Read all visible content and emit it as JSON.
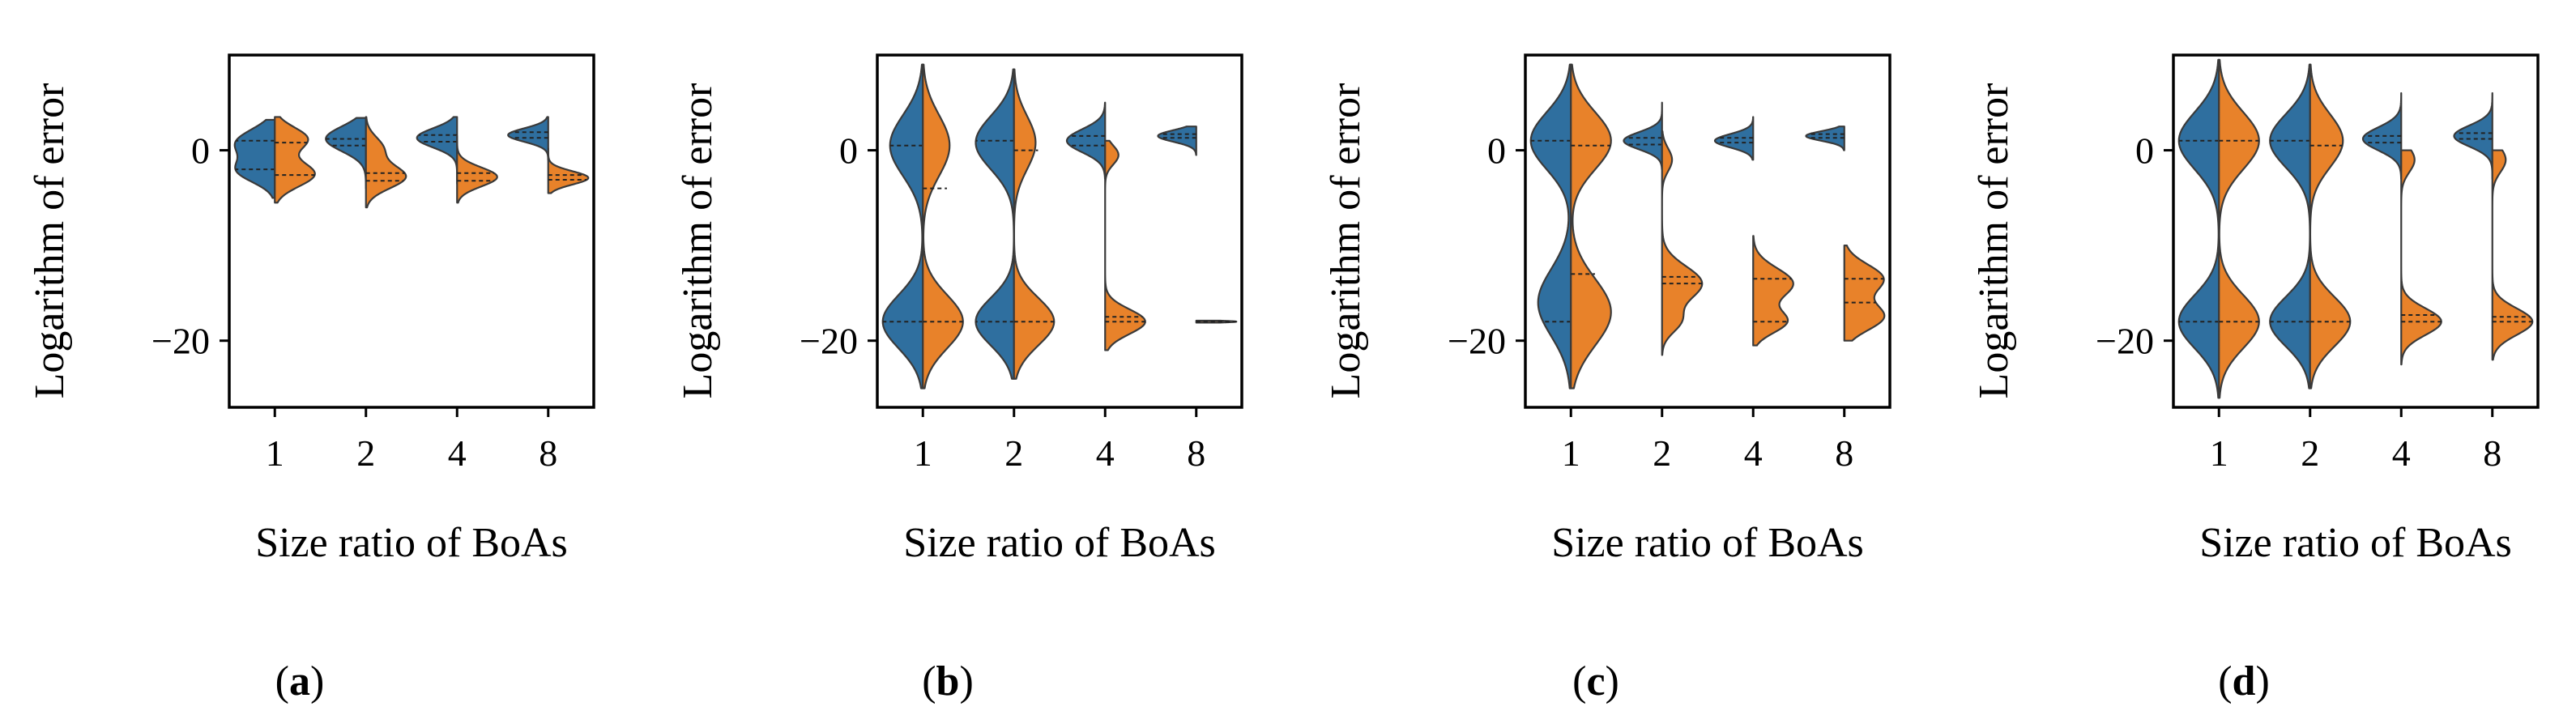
{
  "colors": {
    "left": "#2f6f9f",
    "right": "#e8822a",
    "edge": "#3a3a3a",
    "quart": "#222222"
  },
  "chart_data": [
    {
      "type": "violin",
      "panel_label": "a",
      "xlabel": "Size ratio of BoAs",
      "ylabel": "Logarithm of error",
      "categories": [
        "1",
        "2",
        "4",
        "8"
      ],
      "ylim": [
        -27,
        10
      ],
      "yticks": [
        0,
        -20
      ],
      "ytick_labels": [
        "0",
        "−20"
      ],
      "violins": [
        {
          "left": {
            "range": [
              -5,
              3.2
            ],
            "components": [
              [
                0.8,
                1.4,
                0.55
              ],
              [
                -2.2,
                1.2,
                0.5
              ]
            ],
            "width": 0.44,
            "quartiles": [
              -2,
              1
            ]
          },
          "right": {
            "range": [
              -5.5,
              3.5
            ],
            "components": [
              [
                1.2,
                1.2,
                0.45
              ],
              [
                -2.5,
                1.3,
                0.55
              ]
            ],
            "width": 0.44,
            "quartiles": [
              -2.6,
              0.8
            ]
          }
        },
        {
          "left": {
            "range": [
              -4,
              3.4
            ],
            "components": [
              [
                1.2,
                1.3,
                1
              ]
            ],
            "width": 0.44,
            "quartiles": [
              0.5,
              1.2
            ]
          },
          "right": {
            "range": [
              -6,
              3.5
            ],
            "components": [
              [
                -2.8,
                1.2,
                0.7
              ],
              [
                0.2,
                1.2,
                0.3
              ]
            ],
            "width": 0.44,
            "quartiles": [
              -3.2,
              -2.4
            ]
          }
        },
        {
          "left": {
            "range": [
              -3.5,
              3.5
            ],
            "components": [
              [
                1.3,
                1.0,
                1
              ]
            ],
            "width": 0.44,
            "quartiles": [
              0.9,
              1.6
            ]
          },
          "right": {
            "range": [
              -5.5,
              1.5
            ],
            "components": [
              [
                -2.8,
                1.0,
                1
              ]
            ],
            "width": 0.44,
            "quartiles": [
              -3.2,
              -2.4
            ]
          }
        },
        {
          "left": {
            "range": [
              -1,
              3.5
            ],
            "components": [
              [
                1.6,
                0.7,
                1
              ]
            ],
            "width": 0.44,
            "quartiles": [
              1.3,
              1.9
            ]
          },
          "right": {
            "range": [
              -4.5,
              0.2
            ],
            "components": [
              [
                -2.9,
                0.7,
                1
              ]
            ],
            "width": 0.44,
            "quartiles": [
              -3.1,
              -2.6
            ]
          }
        }
      ]
    },
    {
      "type": "violin",
      "panel_label": "b",
      "xlabel": "Size ratio of BoAs",
      "ylabel": "Logarithm of error",
      "categories": [
        "1",
        "2",
        "4",
        "8"
      ],
      "ylim": [
        -27,
        10
      ],
      "yticks": [
        0,
        -20
      ],
      "ytick_labels": [
        "0",
        "−20"
      ],
      "violins": [
        {
          "left": {
            "range": [
              -25,
              9
            ],
            "components": [
              [
                0.5,
                3.2,
                0.45
              ],
              [
                -18,
                2.8,
                0.55
              ]
            ],
            "width": 0.44,
            "quartiles": [
              -18,
              0.5
            ]
          },
          "right": {
            "range": [
              -25,
              9
            ],
            "components": [
              [
                0.5,
                3.2,
                0.4
              ],
              [
                -18,
                2.8,
                0.6
              ]
            ],
            "width": 0.44,
            "quartiles": [
              -18,
              -4
            ]
          }
        },
        {
          "left": {
            "range": [
              -24,
              8.5
            ],
            "components": [
              [
                0.8,
                2.8,
                0.5
              ],
              [
                -18,
                2.5,
                0.5
              ]
            ],
            "width": 0.42,
            "quartiles": [
              -18,
              1
            ]
          },
          "right": {
            "range": [
              -24,
              8.5
            ],
            "components": [
              [
                0.8,
                2.8,
                0.35
              ],
              [
                -18,
                2.5,
                0.65
              ]
            ],
            "width": 0.44,
            "quartiles": [
              -18,
              0
            ]
          }
        },
        {
          "left": {
            "range": [
              -3,
              5
            ],
            "components": [
              [
                1.0,
                1.2,
                1
              ]
            ],
            "width": 0.42,
            "quartiles": [
              0.5,
              1.5
            ]
          },
          "right": {
            "range": [
              -21,
              1
            ],
            "components": [
              [
                -18,
                1.3,
                0.75
              ],
              [
                -0.5,
                1.0,
                0.25
              ]
            ],
            "width": 0.44,
            "quartiles": [
              -18,
              -17.5
            ]
          }
        },
        {
          "left": {
            "range": [
              -0.5,
              2.5
            ],
            "components": [
              [
                1.5,
                0.6,
                1
              ]
            ],
            "width": 0.42,
            "quartiles": [
              1.3,
              1.7
            ]
          },
          "right": {
            "range": [
              -18.1,
              -17.9
            ],
            "components": [
              [
                -18,
                0.1,
                1
              ]
            ],
            "width": 0.44,
            "quartiles": [
              -18,
              -18
            ]
          }
        }
      ]
    },
    {
      "type": "violin",
      "panel_label": "c",
      "xlabel": "Size ratio of BoAs",
      "ylabel": "Logarithm of error",
      "categories": [
        "1",
        "2",
        "4",
        "8"
      ],
      "ylim": [
        -27,
        10
      ],
      "yticks": [
        0,
        -20
      ],
      "ytick_labels": [
        "0",
        "−20"
      ],
      "violins": [
        {
          "left": {
            "range": [
              -25,
              9
            ],
            "components": [
              [
                1.0,
                3.0,
                0.55
              ],
              [
                -16,
                3.5,
                0.45
              ]
            ],
            "width": 0.44,
            "quartiles": [
              -18,
              1
            ]
          },
          "right": {
            "range": [
              -25,
              9
            ],
            "components": [
              [
                1.0,
                3.0,
                0.5
              ],
              [
                -17,
                3.5,
                0.5
              ]
            ],
            "width": 0.44,
            "quartiles": [
              -13,
              0.5
            ]
          }
        },
        {
          "left": {
            "range": [
              -2,
              5
            ],
            "components": [
              [
                1.0,
                0.9,
                1
              ]
            ],
            "width": 0.42,
            "quartiles": [
              0.6,
              1.3
            ]
          },
          "right": {
            "range": [
              -21.5,
              2
            ],
            "components": [
              [
                -14,
                1.8,
                0.6
              ],
              [
                -18,
                1.2,
                0.25
              ],
              [
                -1,
                1.2,
                0.15
              ]
            ],
            "width": 0.44,
            "quartiles": [
              -14,
              -13.3
            ]
          }
        },
        {
          "left": {
            "range": [
              -1,
              3.5
            ],
            "components": [
              [
                1.0,
                0.7,
                1
              ]
            ],
            "width": 0.42,
            "quartiles": [
              0.8,
              1.3
            ]
          },
          "right": {
            "range": [
              -20.5,
              -9
            ],
            "components": [
              [
                -14,
                1.6,
                0.55
              ],
              [
                -18,
                1.2,
                0.45
              ]
            ],
            "width": 0.44,
            "quartiles": [
              -18,
              -13.5
            ]
          }
        },
        {
          "left": {
            "range": [
              0,
              2.5
            ],
            "components": [
              [
                1.5,
                0.5,
                1
              ]
            ],
            "width": 0.42,
            "quartiles": [
              1.3,
              1.7
            ]
          },
          "right": {
            "range": [
              -20,
              -10
            ],
            "components": [
              [
                -13.5,
                1.5,
                0.5
              ],
              [
                -17.5,
                1.4,
                0.5
              ]
            ],
            "width": 0.44,
            "quartiles": [
              -16,
              -13.5
            ]
          }
        }
      ]
    },
    {
      "type": "violin",
      "panel_label": "d",
      "xlabel": "Size ratio of BoAs",
      "ylabel": "Logarithm of error",
      "categories": [
        "1",
        "2",
        "4",
        "8"
      ],
      "ylim": [
        -27,
        10
      ],
      "yticks": [
        0,
        -20
      ],
      "ytick_labels": [
        "0",
        "−20"
      ],
      "violins": [
        {
          "left": {
            "range": [
              -26,
              9.5
            ],
            "components": [
              [
                1.0,
                3.0,
                0.5
              ],
              [
                -18,
                2.8,
                0.5
              ]
            ],
            "width": 0.44,
            "quartiles": [
              -18,
              1
            ]
          },
          "right": {
            "range": [
              -26,
              9.5
            ],
            "components": [
              [
                1.0,
                3.0,
                0.5
              ],
              [
                -18,
                2.8,
                0.5
              ]
            ],
            "width": 0.44,
            "quartiles": [
              -18,
              1
            ]
          }
        },
        {
          "left": {
            "range": [
              -25,
              9
            ],
            "components": [
              [
                1.0,
                2.8,
                0.5
              ],
              [
                -18,
                2.6,
                0.5
              ]
            ],
            "width": 0.44,
            "quartiles": [
              -18,
              1
            ]
          },
          "right": {
            "range": [
              -25,
              9
            ],
            "components": [
              [
                1.0,
                2.8,
                0.45
              ],
              [
                -18,
                2.6,
                0.55
              ]
            ],
            "width": 0.44,
            "quartiles": [
              -18,
              0.5
            ]
          }
        },
        {
          "left": {
            "range": [
              -3,
              6
            ],
            "components": [
              [
                1.2,
                1.2,
                1
              ]
            ],
            "width": 0.42,
            "quartiles": [
              0.8,
              1.5
            ]
          },
          "right": {
            "range": [
              -22.5,
              0
            ],
            "components": [
              [
                -18,
                1.4,
                0.75
              ],
              [
                -1,
                1.3,
                0.25
              ]
            ],
            "width": 0.44,
            "quartiles": [
              -18,
              -17.3
            ]
          }
        },
        {
          "left": {
            "range": [
              -3,
              6
            ],
            "components": [
              [
                1.5,
                1.1,
                1
              ]
            ],
            "width": 0.42,
            "quartiles": [
              1.2,
              1.8
            ]
          },
          "right": {
            "range": [
              -22,
              0
            ],
            "components": [
              [
                -18,
                1.4,
                0.75
              ],
              [
                -1,
                1.3,
                0.25
              ]
            ],
            "width": 0.44,
            "quartiles": [
              -18,
              -17.5
            ]
          }
        }
      ]
    }
  ]
}
